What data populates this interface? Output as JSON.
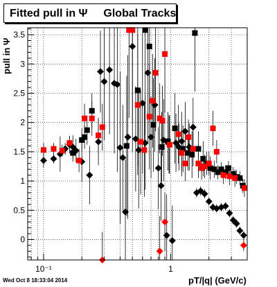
{
  "page": {
    "title_text": "Fitted pull in",
    "title_symbol": "Ψ",
    "title_suffix": "Global Tracks",
    "timestamp": "Wed Oct  8 18:33:04 2014"
  },
  "chart_data": {
    "type": "scatter",
    "title": "Fitted pull in Ψ   Global Tracks",
    "xlabel": "pT/|q| (GeV/c)",
    "ylabel": "pull in Ψ",
    "xscale": "log",
    "xlim": [
      0.075,
      4.0
    ],
    "ylim": [
      -0.35,
      3.62
    ],
    "x_ticks": [
      {
        "v": 0.1,
        "label": "10⁻¹"
      },
      {
        "v": 1,
        "label": "1"
      }
    ],
    "y_ticks": [
      0,
      0.5,
      1,
      1.5,
      2,
      2.5,
      3,
      3.5
    ],
    "grid": true,
    "colors": {
      "black": "#000000",
      "red": "#ff0000"
    },
    "series": [
      {
        "color": "#000000",
        "markers": [
          {
            "shape": "diamond",
            "x": 0.1,
            "y": 1.35,
            "err": 0.12
          },
          {
            "shape": "diamond",
            "x": 0.12,
            "y": 1.38,
            "err": 0.08
          },
          {
            "shape": "diamond",
            "x": 0.135,
            "y": 1.46,
            "err": 0.3
          },
          {
            "shape": "diamond",
            "x": 0.148,
            "y": 1.55,
            "err": 0.1
          },
          {
            "shape": "diamond",
            "x": 0.16,
            "y": 1.62,
            "err": 0.15
          },
          {
            "shape": "diamond",
            "x": 0.17,
            "y": 1.58,
            "err": 0.2
          },
          {
            "shape": "diamond",
            "x": 0.18,
            "y": 1.52,
            "err": 0.2
          },
          {
            "shape": "diamond",
            "x": 0.2,
            "y": 1.33,
            "err": 0.35
          },
          {
            "shape": "diamond",
            "x": 0.23,
            "y": 1.1,
            "err": 0.5
          },
          {
            "shape": "diamond",
            "x": 0.27,
            "y": 1.67,
            "err": 0.4
          },
          {
            "shape": "diamond",
            "x": 0.28,
            "y": 2.87,
            "err": 0.7
          },
          {
            "shape": "diamond",
            "x": 0.3,
            "y": 2.7,
            "err": 1.0
          },
          {
            "shape": "diamond",
            "x": 0.33,
            "y": 2.9,
            "err": 1.1
          },
          {
            "shape": "diamond",
            "x": 0.36,
            "y": 2.67,
            "err": 1.2
          },
          {
            "shape": "diamond",
            "x": 0.38,
            "y": 2.65,
            "err": 1.5
          },
          {
            "shape": "diamond",
            "x": 0.4,
            "y": 1.57,
            "err": 1.3
          },
          {
            "shape": "diamond",
            "x": 0.42,
            "y": 1.4,
            "err": 0.9
          },
          {
            "shape": "diamond",
            "x": 0.44,
            "y": 0.47,
            "err": 0.9
          },
          {
            "shape": "diamond",
            "x": 0.46,
            "y": 1.75,
            "err": 1.4
          },
          {
            "shape": "diamond",
            "x": 0.5,
            "y": 3.3,
            "err": 1.8
          },
          {
            "shape": "diamond",
            "x": 0.53,
            "y": 1.72,
            "err": 0.9
          },
          {
            "shape": "diamond",
            "x": 0.56,
            "y": 1.53,
            "err": 1.0
          },
          {
            "shape": "diamond",
            "x": 0.6,
            "y": 2.33,
            "err": 1.2
          },
          {
            "shape": "diamond",
            "x": 0.63,
            "y": 1.65,
            "err": 0.8
          },
          {
            "shape": "diamond",
            "x": 0.66,
            "y": 2.85,
            "err": 1.2
          },
          {
            "shape": "diamond",
            "x": 0.7,
            "y": 1.75,
            "err": 0.7
          },
          {
            "shape": "diamond",
            "x": 0.75,
            "y": 2.3,
            "err": 0.8
          },
          {
            "shape": "diamond",
            "x": 0.8,
            "y": 1.22,
            "err": 0.7
          },
          {
            "shape": "diamond",
            "x": 0.84,
            "y": 0.92,
            "err": 0.6
          },
          {
            "shape": "diamond",
            "x": 0.88,
            "y": 1.7,
            "err": 0.7
          },
          {
            "shape": "diamond",
            "x": 0.93,
            "y": 0.07,
            "err": 0.7
          },
          {
            "shape": "diamond",
            "x": 0.97,
            "y": 1.63,
            "err": 0.5
          },
          {
            "shape": "diamond",
            "x": 1.03,
            "y": -0.02,
            "err": 0.6
          },
          {
            "shape": "diamond",
            "x": 1.1,
            "y": 1.65,
            "err": 0.5
          },
          {
            "shape": "diamond",
            "x": 1.16,
            "y": 1.58,
            "err": 0.4
          },
          {
            "shape": "diamond",
            "x": 1.22,
            "y": 1.68,
            "err": 0.5
          },
          {
            "shape": "diamond",
            "x": 1.3,
            "y": 1.85,
            "err": 0.5
          },
          {
            "shape": "diamond",
            "x": 1.4,
            "y": 1.58,
            "err": 0.4
          },
          {
            "shape": "diamond",
            "x": 1.5,
            "y": 1.92,
            "err": 0.5
          },
          {
            "shape": "diamond",
            "x": 1.6,
            "y": 0.8,
            "err": 0.08
          },
          {
            "shape": "diamond",
            "x": 1.72,
            "y": 0.83,
            "err": 0.08
          },
          {
            "shape": "diamond",
            "x": 1.85,
            "y": 0.78,
            "err": 0.08
          },
          {
            "shape": "diamond",
            "x": 2.0,
            "y": 0.65,
            "err": 0.07
          },
          {
            "shape": "diamond",
            "x": 2.15,
            "y": 0.55,
            "err": 0.07
          },
          {
            "shape": "diamond",
            "x": 2.3,
            "y": 0.53,
            "err": 0.07
          },
          {
            "shape": "diamond",
            "x": 2.5,
            "y": 0.55,
            "err": 0.07
          },
          {
            "shape": "diamond",
            "x": 2.7,
            "y": 0.57,
            "err": 0.07
          },
          {
            "shape": "diamond",
            "x": 2.9,
            "y": 0.45,
            "err": 0.07
          },
          {
            "shape": "diamond",
            "x": 3.1,
            "y": 0.33,
            "err": 0.07
          },
          {
            "shape": "diamond",
            "x": 3.3,
            "y": 0.27,
            "err": 0.07
          },
          {
            "shape": "diamond",
            "x": 3.5,
            "y": 0.15,
            "err": 0.07
          },
          {
            "shape": "diamond",
            "x": 3.75,
            "y": 0.07,
            "err": 0.07
          },
          {
            "shape": "square",
            "x": 0.17,
            "y": 1.48,
            "err": 0.15
          },
          {
            "shape": "square",
            "x": 0.2,
            "y": 1.7,
            "err": 0.2
          },
          {
            "shape": "square",
            "x": 0.21,
            "y": 1.75,
            "err": 0.2
          },
          {
            "shape": "square",
            "x": 0.22,
            "y": 1.87,
            "err": 0.25
          },
          {
            "shape": "square",
            "x": 0.24,
            "y": 2.2,
            "err": 0.3
          },
          {
            "shape": "square",
            "x": 0.45,
            "y": 1.6,
            "err": 1.2
          },
          {
            "shape": "square",
            "x": 0.55,
            "y": 2.55,
            "err": 1.3
          },
          {
            "shape": "square",
            "x": 0.63,
            "y": 3.58,
            "err": 1.8
          },
          {
            "shape": "square",
            "x": 0.68,
            "y": 3.3,
            "err": 1.3
          },
          {
            "shape": "square",
            "x": 0.73,
            "y": 1.96,
            "err": 0.8
          },
          {
            "shape": "square",
            "x": 0.85,
            "y": 1.58,
            "err": 0.6
          },
          {
            "shape": "square",
            "x": 0.95,
            "y": 1.68,
            "err": 0.5
          },
          {
            "shape": "square",
            "x": 1.08,
            "y": 1.9,
            "err": 0.6
          },
          {
            "shape": "square",
            "x": 1.25,
            "y": 1.55,
            "err": 0.4
          },
          {
            "shape": "square",
            "x": 1.37,
            "y": 1.48,
            "err": 0.3
          },
          {
            "shape": "square",
            "x": 1.47,
            "y": 1.45,
            "err": 0.4
          },
          {
            "shape": "square",
            "x": 1.55,
            "y": 3.53,
            "err": 1.0
          },
          {
            "shape": "square",
            "x": 1.65,
            "y": 1.55,
            "err": 0.3
          },
          {
            "shape": "square",
            "x": 1.8,
            "y": 1.38,
            "err": 0.3
          },
          {
            "shape": "square",
            "x": 1.92,
            "y": 1.3,
            "err": 0.2
          },
          {
            "shape": "square",
            "x": 2.05,
            "y": 1.22,
            "err": 0.2
          },
          {
            "shape": "square",
            "x": 2.2,
            "y": 1.2,
            "err": 0.15
          },
          {
            "shape": "square",
            "x": 2.35,
            "y": 1.15,
            "err": 0.12
          },
          {
            "shape": "square",
            "x": 2.5,
            "y": 1.2,
            "err": 0.12
          },
          {
            "shape": "square",
            "x": 2.7,
            "y": 1.15,
            "err": 0.12
          },
          {
            "shape": "square",
            "x": 2.85,
            "y": 1.22,
            "err": 0.12
          },
          {
            "shape": "square",
            "x": 3.1,
            "y": 1.12,
            "err": 0.12
          },
          {
            "shape": "square",
            "x": 3.3,
            "y": 1.07,
            "err": 0.12
          },
          {
            "shape": "square",
            "x": 3.5,
            "y": 1.05,
            "err": 0.12
          },
          {
            "shape": "square",
            "x": 3.7,
            "y": 0.92,
            "err": 0.12
          }
        ]
      },
      {
        "color": "#ff0000",
        "markers": [
          {
            "shape": "square",
            "x": 0.1,
            "y": 1.53,
            "err": 0.12
          },
          {
            "shape": "square",
            "x": 0.12,
            "y": 1.55,
            "err": 0.1
          },
          {
            "shape": "square",
            "x": 0.14,
            "y": 1.52,
            "err": 0.1
          },
          {
            "shape": "square",
            "x": 0.16,
            "y": 1.65,
            "err": 0.12
          },
          {
            "shape": "square",
            "x": 0.19,
            "y": 1.35,
            "err": 0.2
          },
          {
            "shape": "square",
            "x": 0.21,
            "y": 2.07,
            "err": 0.25
          },
          {
            "shape": "square",
            "x": 0.24,
            "y": 2.07,
            "err": 0.3
          },
          {
            "shape": "square",
            "x": 0.27,
            "y": 1.78,
            "err": 0.3
          },
          {
            "shape": "square",
            "x": 0.29,
            "y": 1.92,
            "err": 0.4
          },
          {
            "shape": "square",
            "x": 0.47,
            "y": 3.58,
            "err": 1.5
          },
          {
            "shape": "square",
            "x": 0.5,
            "y": 3.58,
            "err": 1.6
          },
          {
            "shape": "square",
            "x": 0.55,
            "y": 2.3,
            "err": 1.2
          },
          {
            "shape": "square",
            "x": 0.58,
            "y": 1.67,
            "err": 0.9
          },
          {
            "shape": "square",
            "x": 0.62,
            "y": 1.53,
            "err": 0.8
          },
          {
            "shape": "square",
            "x": 0.68,
            "y": 2.1,
            "err": 0.9
          },
          {
            "shape": "square",
            "x": 0.72,
            "y": 2.37,
            "err": 0.8
          },
          {
            "shape": "square",
            "x": 0.76,
            "y": 2.85,
            "err": 1.0
          },
          {
            "shape": "square",
            "x": 0.82,
            "y": 2.07,
            "err": 0.6
          },
          {
            "shape": "square",
            "x": 0.86,
            "y": 2.03,
            "err": 0.6
          },
          {
            "shape": "square",
            "x": 0.9,
            "y": 3.17,
            "err": 1.0
          },
          {
            "shape": "square",
            "x": 0.98,
            "y": 1.62,
            "err": 0.5
          },
          {
            "shape": "square",
            "x": 1.15,
            "y": 1.8,
            "err": 0.5
          },
          {
            "shape": "square",
            "x": 1.22,
            "y": 1.48,
            "err": 0.4
          },
          {
            "shape": "square",
            "x": 1.3,
            "y": 1.3,
            "err": 0.3
          },
          {
            "shape": "square",
            "x": 1.38,
            "y": 1.75,
            "err": 0.3
          },
          {
            "shape": "square",
            "x": 1.5,
            "y": 1.55,
            "err": 0.3
          },
          {
            "shape": "square",
            "x": 1.65,
            "y": 1.3,
            "err": 0.25
          },
          {
            "shape": "square",
            "x": 1.75,
            "y": 1.22,
            "err": 0.2
          },
          {
            "shape": "square",
            "x": 1.85,
            "y": 1.25,
            "err": 0.2
          },
          {
            "shape": "square",
            "x": 2.0,
            "y": 1.3,
            "err": 0.2
          },
          {
            "shape": "square",
            "x": 2.15,
            "y": 1.9,
            "err": 0.3
          },
          {
            "shape": "square",
            "x": 2.3,
            "y": 1.5,
            "err": 0.2
          },
          {
            "shape": "square",
            "x": 2.6,
            "y": 1.1,
            "err": 0.15
          },
          {
            "shape": "square",
            "x": 2.9,
            "y": 1.08,
            "err": 0.15
          },
          {
            "shape": "square",
            "x": 3.2,
            "y": 1.05,
            "err": 0.15
          },
          {
            "shape": "square",
            "x": 3.8,
            "y": 0.88,
            "err": 0.15
          },
          {
            "shape": "diamond",
            "x": 0.29,
            "y": -0.37,
            "err": 0.5
          },
          {
            "shape": "diamond",
            "x": 0.82,
            "y": -0.2,
            "err": 0.6
          },
          {
            "shape": "diamond",
            "x": 0.9,
            "y": 0.3,
            "err": 0.5
          },
          {
            "shape": "diamond",
            "x": 3.75,
            "y": -0.1,
            "err": 0.1
          }
        ]
      }
    ]
  }
}
